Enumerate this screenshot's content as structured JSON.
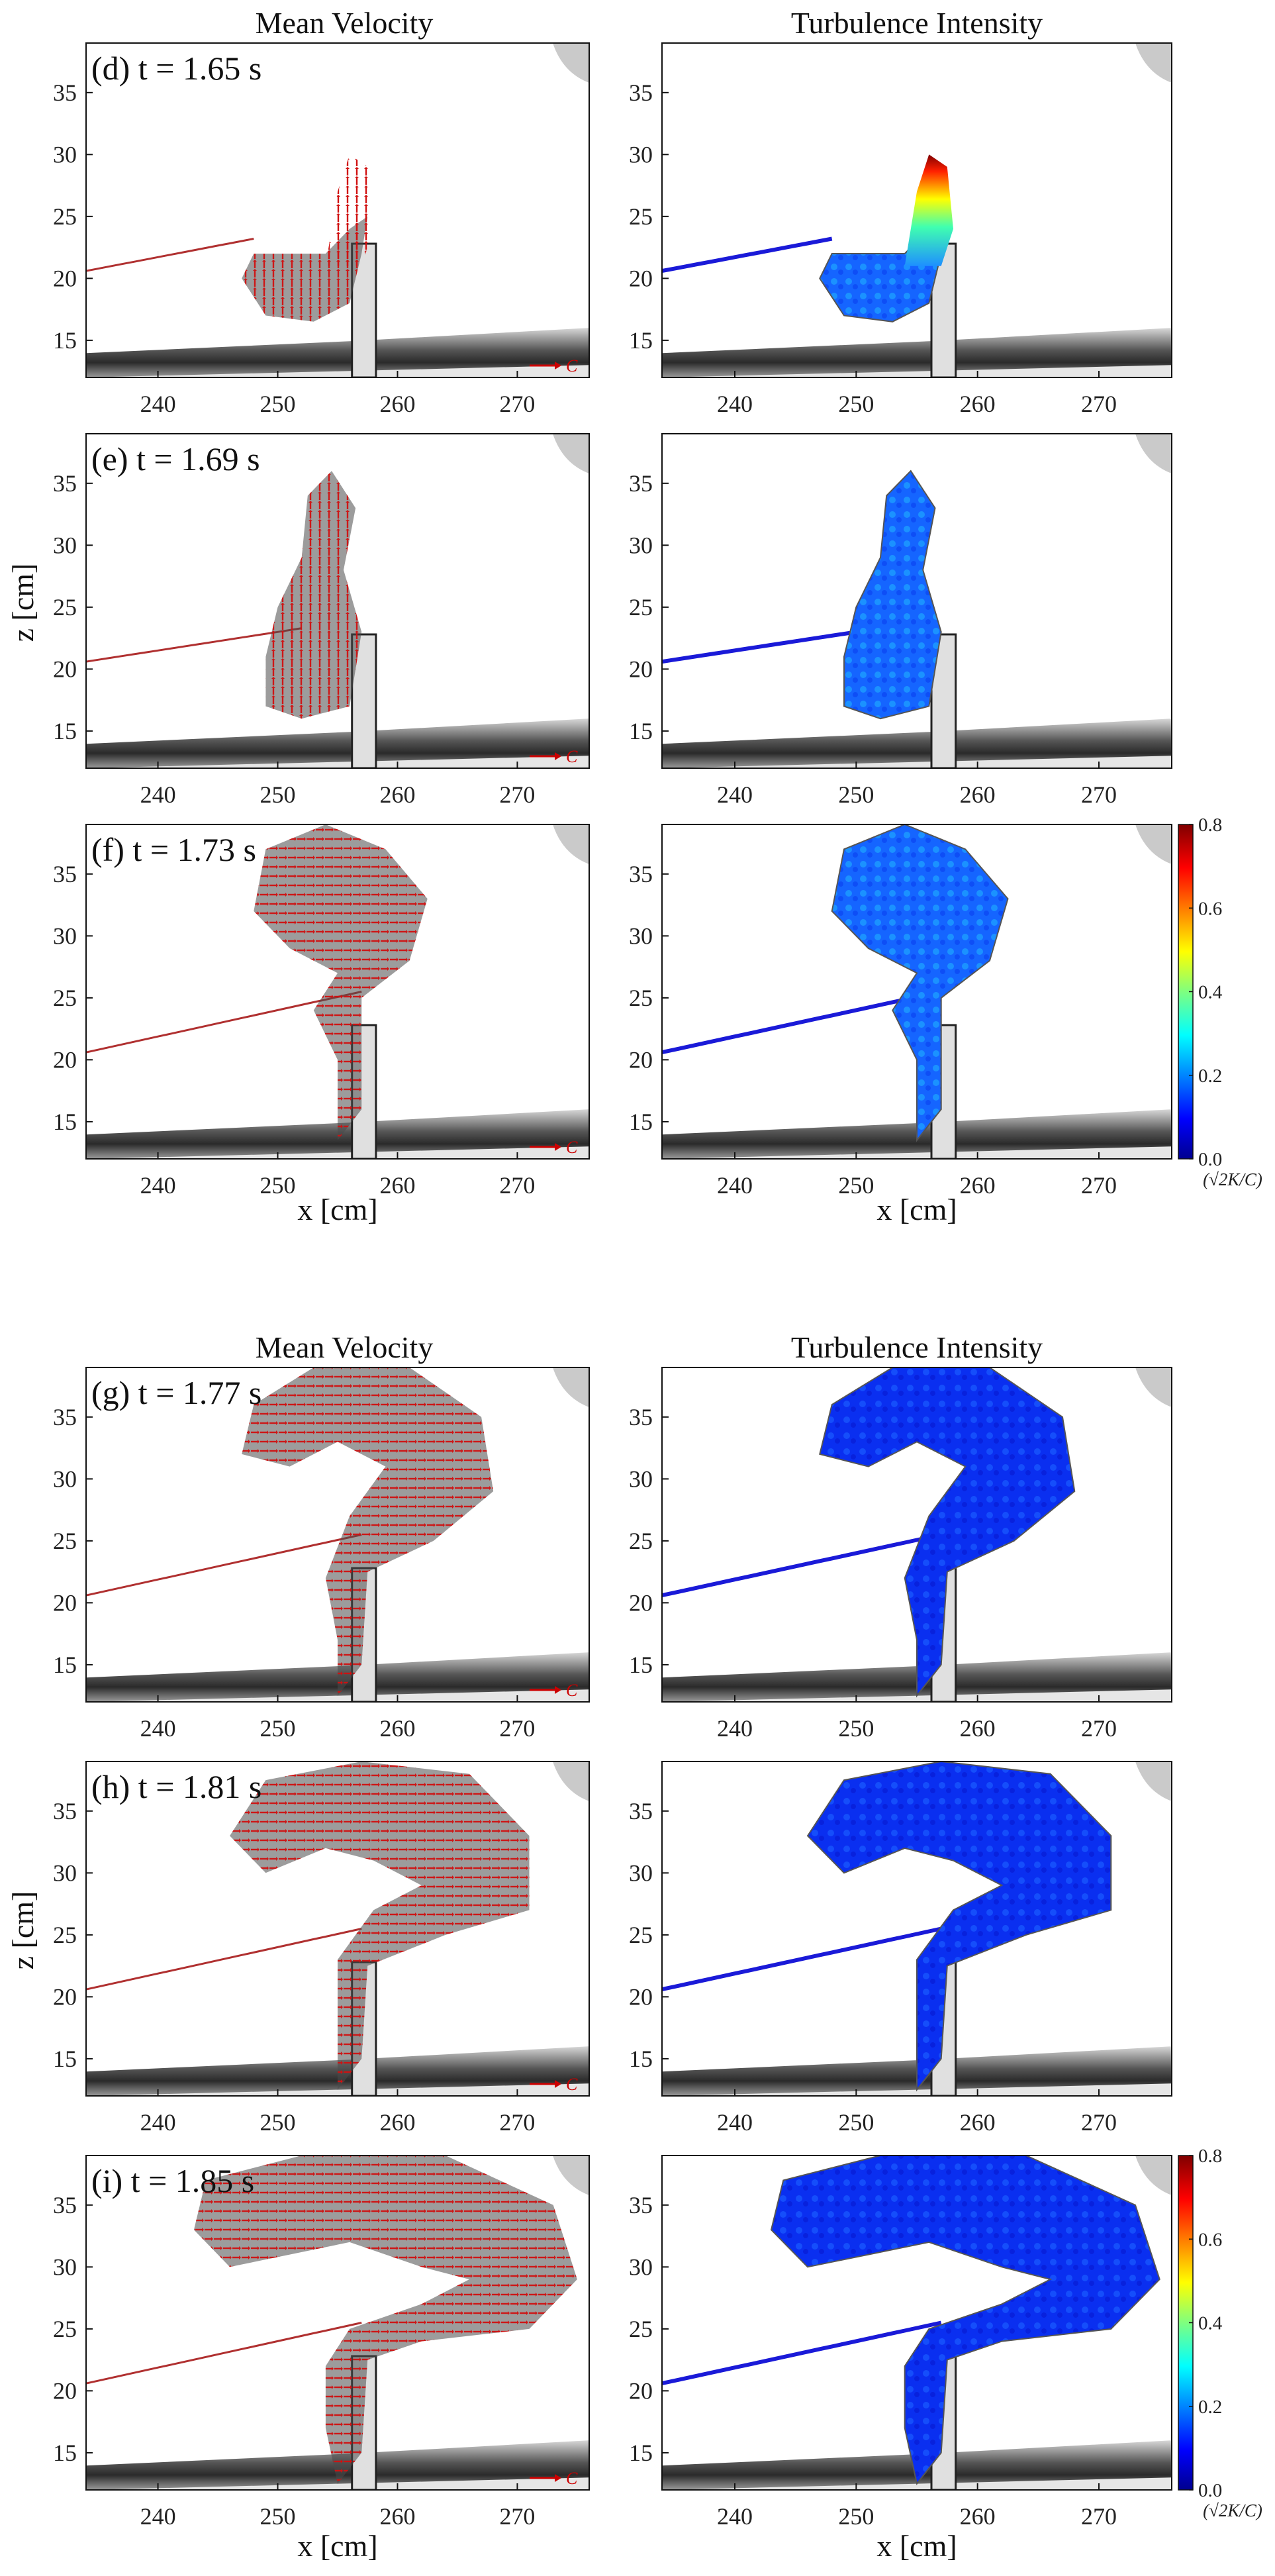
{
  "figure": {
    "column_titles": [
      {
        "text": "Mean Velocity"
      },
      {
        "text": "Turbulence Intensity"
      },
      {
        "text": "Mean Velocity"
      },
      {
        "text": "Turbulence Intensity"
      }
    ],
    "axis_labels": {
      "x": "x [cm]",
      "z": "z [cm]"
    },
    "x_ticks": [
      "240",
      "250",
      "260",
      "270"
    ],
    "z_ticks": [
      "15",
      "20",
      "25",
      "30",
      "35"
    ],
    "x_range": [
      234,
      276
    ],
    "z_range": [
      12,
      39
    ],
    "velocity_scale_label": "C",
    "colorbar": {
      "ticks": [
        "0.8",
        "0.6",
        "0.4",
        "0.2",
        "0.0"
      ],
      "range": [
        0.0,
        0.8
      ],
      "label": "(√2K/C)",
      "colormap": "jet"
    },
    "panels": [
      {
        "label": "(d) t = 1.65 s",
        "time_s": 1.65
      },
      {
        "label": "(e) t = 1.69 s",
        "time_s": 1.69
      },
      {
        "label": "(f) t = 1.73 s",
        "time_s": 1.73
      },
      {
        "label": "(g) t = 1.77 s",
        "time_s": 1.77
      },
      {
        "label": "(h) t = 1.81 s",
        "time_s": 1.81
      },
      {
        "label": "(i) t = 1.85 s",
        "time_s": 1.85
      }
    ],
    "colors": {
      "vector": "#d01010",
      "low_intensity": "#0a14d6",
      "mid_intensity": "#1ea0ff",
      "high_intensity": "#cc0000"
    }
  }
}
